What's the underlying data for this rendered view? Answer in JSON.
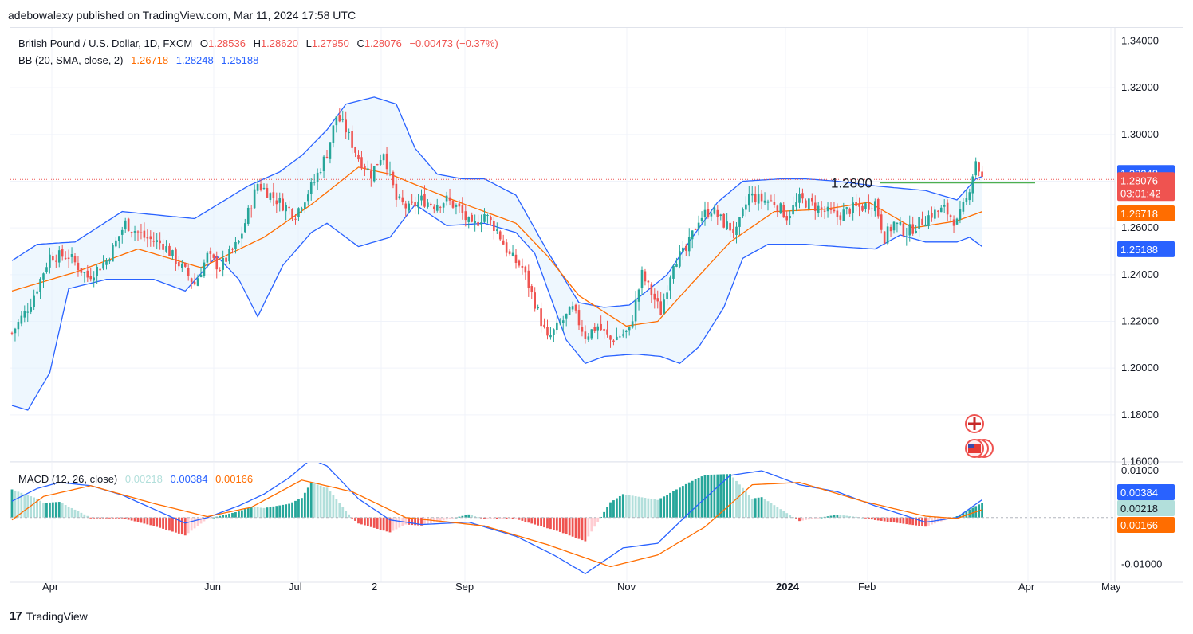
{
  "publisher": "adebowalexy published on TradingView.com, Mar 11, 2024 17:58 UTC",
  "footer": {
    "brand": "TradingView",
    "logo_text": "17"
  },
  "legend": {
    "symbol": "British Pound / U.S. Dollar, 1D, FXCM",
    "o_label": "O",
    "o": "1.28536",
    "h_label": "H",
    "h": "1.28620",
    "l_label": "L",
    "l": "1.27950",
    "c_label": "C",
    "c": "1.28076",
    "change": "−0.00473 (−0.37%)",
    "bb_label": "BB (20, SMA, close, 2)",
    "bb_basis": "1.26718",
    "bb_upper": "1.28248",
    "bb_lower": "1.25188",
    "macd_label": "MACD (12, 26, close)",
    "macd_hist": "0.00218",
    "macd_line": "0.00384",
    "macd_signal": "0.00166"
  },
  "colors": {
    "up": "#26a69a",
    "down": "#ef5350",
    "bb_upper": "#2962ff",
    "bb_basis": "#ff6d00",
    "bb_fill": "#e3f2fd",
    "hline": "#4caf50",
    "macd_line": "#2962ff",
    "signal": "#ff6d00",
    "hist_up_strong": "#26a69a",
    "hist_up_weak": "#b2dfdb",
    "hist_down_strong": "#ef5350",
    "hist_down_weak": "#ffcdd2"
  },
  "chart_data": [
    {
      "type": "candlestick",
      "title": "British Pound / U.S. Dollar, 1D, FXCM",
      "y_axis_labels": [
        "1.34000",
        "1.32000",
        "1.30000",
        "1.28000",
        "1.26000",
        "1.24000",
        "1.22000",
        "1.20000",
        "1.18000",
        "1.16000"
      ],
      "ylim": [
        1.16,
        1.34
      ],
      "x_axis_labels": [
        "Apr",
        "Jun",
        "Jul",
        "2",
        "Sep",
        "Nov",
        "2024",
        "Feb",
        "Apr",
        "May"
      ],
      "price_tags": {
        "bb_upper": "1.28248",
        "close": "1.28076",
        "countdown": "03:01:42",
        "bb_basis": "1.26718",
        "bb_lower": "1.25188"
      },
      "close_value": 1.28076,
      "annotation": {
        "text": "1.2800",
        "value": 1.28
      },
      "close_anchors": [
        [
          0,
          1.215
        ],
        [
          6,
          1.228
        ],
        [
          12,
          1.248
        ],
        [
          18,
          1.248
        ],
        [
          24,
          1.239
        ],
        [
          30,
          1.246
        ],
        [
          36,
          1.262
        ],
        [
          42,
          1.256
        ],
        [
          48,
          1.253
        ],
        [
          54,
          1.243
        ],
        [
          58,
          1.236
        ],
        [
          62,
          1.248
        ],
        [
          66,
          1.243
        ],
        [
          72,
          1.254
        ],
        [
          78,
          1.279
        ],
        [
          84,
          1.272
        ],
        [
          90,
          1.266
        ],
        [
          96,
          1.28
        ],
        [
          100,
          1.292
        ],
        [
          103,
          1.308
        ],
        [
          106,
          1.302
        ],
        [
          110,
          1.29
        ],
        [
          114,
          1.283
        ],
        [
          118,
          1.293
        ],
        [
          122,
          1.272
        ],
        [
          126,
          1.268
        ],
        [
          130,
          1.272
        ],
        [
          134,
          1.27
        ],
        [
          138,
          1.272
        ],
        [
          142,
          1.268
        ],
        [
          146,
          1.26
        ],
        [
          150,
          1.266
        ],
        [
          154,
          1.259
        ],
        [
          158,
          1.248
        ],
        [
          162,
          1.243
        ],
        [
          166,
          1.228
        ],
        [
          170,
          1.212
        ],
        [
          174,
          1.219
        ],
        [
          178,
          1.225
        ],
        [
          182,
          1.214
        ],
        [
          186,
          1.218
        ],
        [
          190,
          1.212
        ],
        [
          196,
          1.216
        ],
        [
          200,
          1.24
        ],
        [
          206,
          1.224
        ],
        [
          210,
          1.246
        ],
        [
          214,
          1.25
        ],
        [
          218,
          1.264
        ],
        [
          222,
          1.268
        ],
        [
          226,
          1.262
        ],
        [
          230,
          1.258
        ],
        [
          234,
          1.274
        ],
        [
          238,
          1.272
        ],
        [
          242,
          1.271
        ],
        [
          246,
          1.265
        ],
        [
          250,
          1.272
        ],
        [
          254,
          1.27
        ],
        [
          258,
          1.267
        ],
        [
          262,
          1.265
        ],
        [
          266,
          1.268
        ],
        [
          270,
          1.269
        ],
        [
          274,
          1.271
        ],
        [
          277,
          1.256
        ],
        [
          280,
          1.262
        ],
        [
          284,
          1.258
        ],
        [
          288,
          1.262
        ],
        [
          292,
          1.266
        ],
        [
          296,
          1.268
        ],
        [
          300,
          1.262
        ],
        [
          303,
          1.272
        ],
        [
          306,
          1.289
        ],
        [
          308,
          1.281
        ]
      ],
      "basis_anchors": [
        [
          0,
          1.233
        ],
        [
          20,
          1.241
        ],
        [
          40,
          1.251
        ],
        [
          60,
          1.243
        ],
        [
          80,
          1.256
        ],
        [
          95,
          1.27
        ],
        [
          110,
          1.286
        ],
        [
          120,
          1.283
        ],
        [
          140,
          1.272
        ],
        [
          160,
          1.262
        ],
        [
          170,
          1.248
        ],
        [
          180,
          1.231
        ],
        [
          195,
          1.218
        ],
        [
          205,
          1.22
        ],
        [
          215,
          1.235
        ],
        [
          228,
          1.254
        ],
        [
          242,
          1.267
        ],
        [
          258,
          1.268
        ],
        [
          272,
          1.271
        ],
        [
          286,
          1.26
        ],
        [
          300,
          1.263
        ],
        [
          308,
          1.267
        ]
      ],
      "upper_anchors": [
        [
          0,
          1.246
        ],
        [
          8,
          1.253
        ],
        [
          20,
          1.254
        ],
        [
          35,
          1.267
        ],
        [
          50,
          1.265
        ],
        [
          58,
          1.264
        ],
        [
          75,
          1.278
        ],
        [
          85,
          1.284
        ],
        [
          92,
          1.291
        ],
        [
          100,
          1.302
        ],
        [
          106,
          1.313
        ],
        [
          115,
          1.316
        ],
        [
          122,
          1.313
        ],
        [
          128,
          1.294
        ],
        [
          135,
          1.283
        ],
        [
          143,
          1.281
        ],
        [
          150,
          1.281
        ],
        [
          160,
          1.274
        ],
        [
          170,
          1.25
        ],
        [
          180,
          1.228
        ],
        [
          188,
          1.226
        ],
        [
          196,
          1.227
        ],
        [
          208,
          1.24
        ],
        [
          216,
          1.256
        ],
        [
          224,
          1.271
        ],
        [
          232,
          1.28
        ],
        [
          244,
          1.281
        ],
        [
          252,
          1.281
        ],
        [
          262,
          1.28
        ],
        [
          274,
          1.278
        ],
        [
          290,
          1.276
        ],
        [
          300,
          1.272
        ],
        [
          306,
          1.281
        ],
        [
          308,
          1.282
        ]
      ],
      "lower_anchors": [
        [
          0,
          1.184
        ],
        [
          5,
          1.182
        ],
        [
          12,
          1.198
        ],
        [
          18,
          1.234
        ],
        [
          30,
          1.238
        ],
        [
          45,
          1.238
        ],
        [
          55,
          1.233
        ],
        [
          65,
          1.248
        ],
        [
          72,
          1.238
        ],
        [
          78,
          1.222
        ],
        [
          86,
          1.244
        ],
        [
          95,
          1.258
        ],
        [
          100,
          1.262
        ],
        [
          110,
          1.252
        ],
        [
          120,
          1.256
        ],
        [
          128,
          1.27
        ],
        [
          138,
          1.261
        ],
        [
          150,
          1.262
        ],
        [
          160,
          1.258
        ],
        [
          166,
          1.249
        ],
        [
          170,
          1.234
        ],
        [
          176,
          1.212
        ],
        [
          182,
          1.202
        ],
        [
          188,
          1.205
        ],
        [
          198,
          1.206
        ],
        [
          206,
          1.205
        ],
        [
          212,
          1.202
        ],
        [
          218,
          1.209
        ],
        [
          226,
          1.226
        ],
        [
          232,
          1.247
        ],
        [
          240,
          1.253
        ],
        [
          252,
          1.253
        ],
        [
          262,
          1.252
        ],
        [
          274,
          1.251
        ],
        [
          282,
          1.257
        ],
        [
          290,
          1.254
        ],
        [
          300,
          1.254
        ],
        [
          304,
          1.256
        ],
        [
          308,
          1.252
        ]
      ]
    },
    {
      "type": "line",
      "title": "MACD (12, 26, close)",
      "y_axis_labels": [
        "0.01000",
        "0.00384",
        "0.00218",
        "0.00166",
        "-0.01000"
      ],
      "ylim": [
        -0.011,
        0.012
      ],
      "macd_anchors": [
        [
          0,
          0.0035
        ],
        [
          8,
          0.0062
        ],
        [
          15,
          0.0075
        ],
        [
          25,
          0.0068
        ],
        [
          35,
          0.0048
        ],
        [
          45,
          0.0018
        ],
        [
          55,
          -0.0012
        ],
        [
          62,
          0.0
        ],
        [
          72,
          0.0025
        ],
        [
          80,
          0.005
        ],
        [
          88,
          0.0085
        ],
        [
          95,
          0.0125
        ],
        [
          100,
          0.011
        ],
        [
          110,
          0.004
        ],
        [
          120,
          -0.0005
        ],
        [
          130,
          -0.0015
        ],
        [
          145,
          -0.001
        ],
        [
          160,
          -0.004
        ],
        [
          172,
          -0.008
        ],
        [
          182,
          -0.012
        ],
        [
          194,
          -0.0065
        ],
        [
          205,
          -0.0055
        ],
        [
          215,
          0.001
        ],
        [
          228,
          0.009
        ],
        [
          238,
          0.01
        ],
        [
          250,
          0.007
        ],
        [
          262,
          0.0055
        ],
        [
          274,
          0.0025
        ],
        [
          290,
          -0.001
        ],
        [
          300,
          0.0
        ],
        [
          308,
          0.0038
        ]
      ],
      "signal_anchors": [
        [
          0,
          -0.0005
        ],
        [
          10,
          0.0045
        ],
        [
          25,
          0.0068
        ],
        [
          45,
          0.003
        ],
        [
          62,
          0.0002
        ],
        [
          76,
          0.0022
        ],
        [
          92,
          0.008
        ],
        [
          108,
          0.0055
        ],
        [
          125,
          0.0
        ],
        [
          150,
          -0.0018
        ],
        [
          170,
          -0.0058
        ],
        [
          190,
          -0.0105
        ],
        [
          205,
          -0.008
        ],
        [
          220,
          -0.002
        ],
        [
          235,
          0.007
        ],
        [
          250,
          0.0075
        ],
        [
          270,
          0.0035
        ],
        [
          290,
          0.0003
        ],
        [
          300,
          -0.0002
        ],
        [
          308,
          0.0017
        ]
      ]
    }
  ]
}
